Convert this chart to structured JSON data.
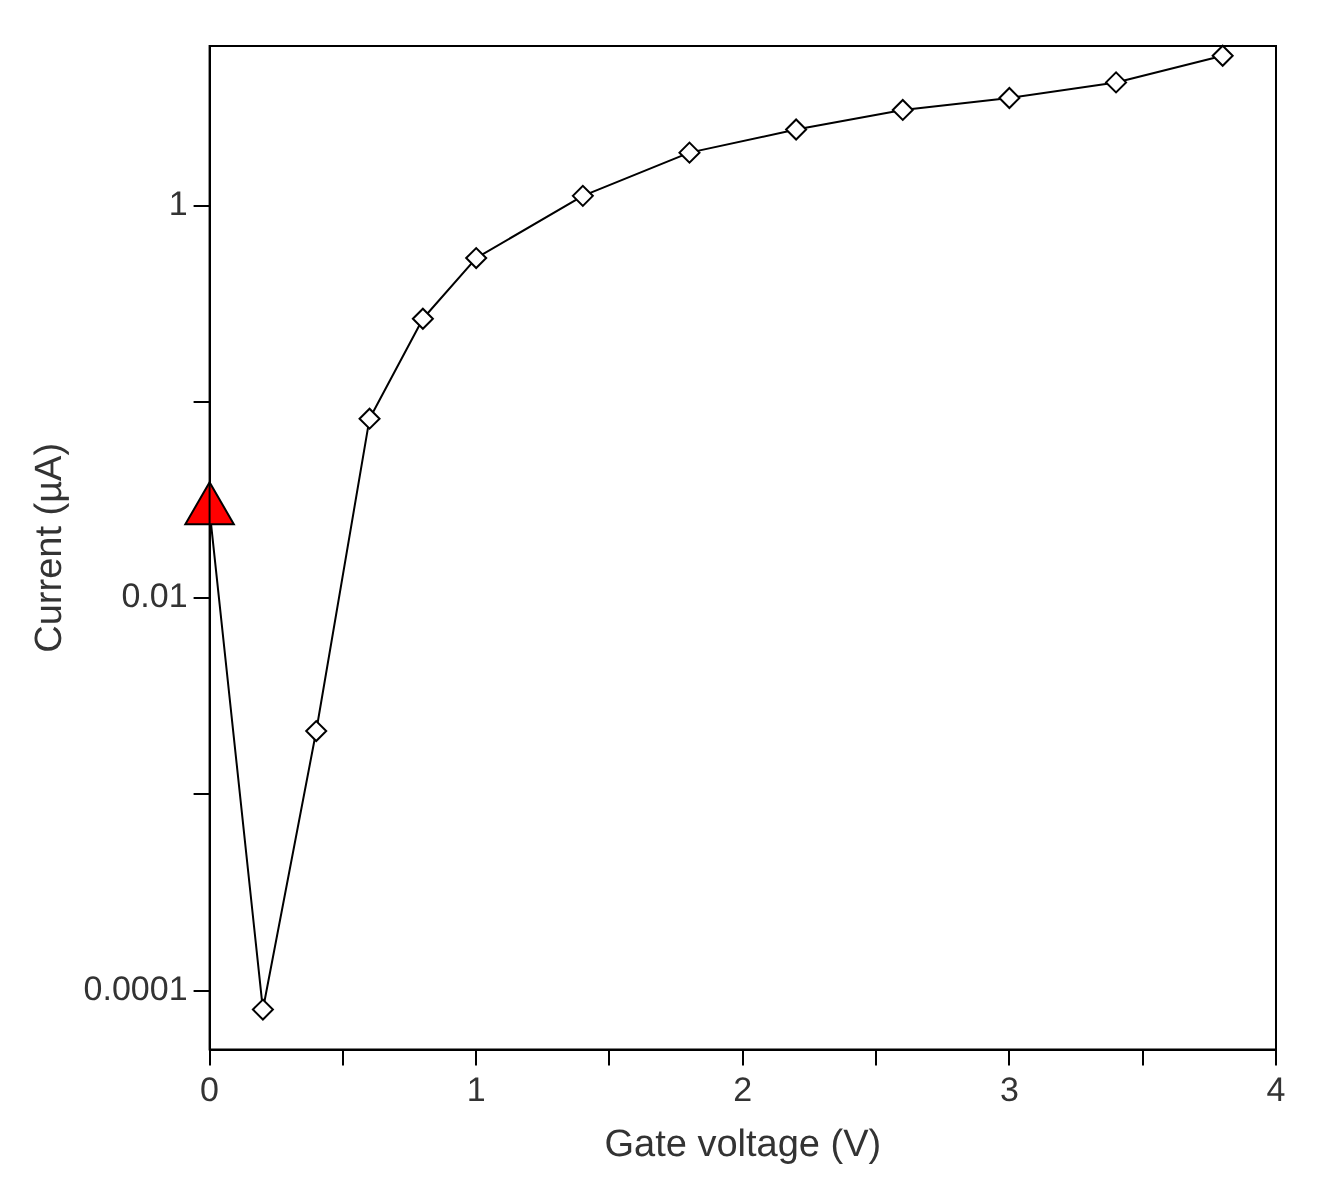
{
  "chart_data": {
    "type": "line",
    "xlabel": "Gate voltage (V)",
    "ylabel": "Current (µA)",
    "log": "y",
    "grid": false,
    "legend": false,
    "marker": "diamond",
    "line_style": "solid",
    "xlim": [
      0,
      4
    ],
    "xticks": [
      0,
      {
        "value": 0.5,
        "label": null
      },
      1,
      {
        "value": 1.5,
        "label": null
      },
      2,
      {
        "value": 2.5,
        "label": null
      },
      3,
      {
        "value": 3.5,
        "label": null
      },
      4
    ],
    "ylim": [
      5e-05,
      6.5
    ],
    "yticks": [
      0.0001,
      {
        "value": 0.001,
        "label": null
      },
      0.01,
      {
        "value": 0.1,
        "label": null
      },
      1
    ],
    "series": [
      {
        "color": "#000000",
        "x": [
          0,
          0.2,
          0.4,
          0.6,
          0.8,
          1.0,
          1.4,
          1.8,
          2.2,
          2.6,
          3.0,
          3.4,
          3.8
        ],
        "values": [
          0.028,
          8e-05,
          0.0021,
          0.082,
          0.265,
          0.54,
          1.12,
          1.86,
          2.44,
          3.07,
          3.53,
          4.24,
          5.8
        ]
      },
      {
        "type": "scatter",
        "color": "#ff0000",
        "marker": "triangle",
        "x": [
          0
        ],
        "values": [
          0.028
        ]
      }
    ]
  }
}
